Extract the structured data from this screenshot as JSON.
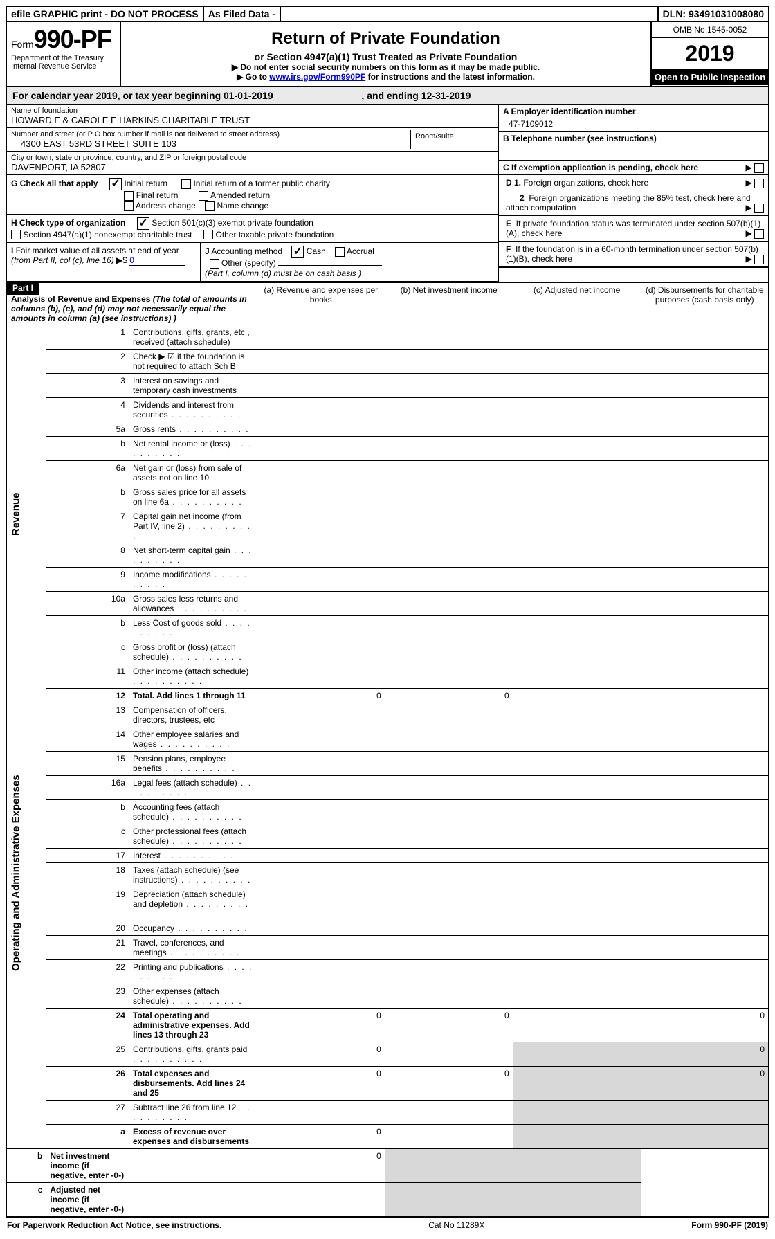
{
  "top": {
    "efile": "efile GRAPHIC print - DO NOT PROCESS",
    "asfiled": "As Filed Data -",
    "dln": "DLN: 93491031008080"
  },
  "header": {
    "form_prefix": "Form",
    "form_no": "990-PF",
    "dept": "Department of the Treasury",
    "irs": "Internal Revenue Service",
    "title": "Return of Private Foundation",
    "subtitle": "or Section 4947(a)(1) Trust Treated as Private Foundation",
    "line1": "▶ Do not enter social security numbers on this form as it may be made public.",
    "line2_pre": "▶ Go to ",
    "line2_link": "www.irs.gov/Form990PF",
    "line2_post": " for instructions and the latest information.",
    "omb": "OMB No 1545-0052",
    "year": "2019",
    "inspect": "Open to Public Inspection"
  },
  "cal": {
    "text1": "For calendar year 2019, or tax year beginning ",
    "begin": "01-01-2019",
    "text2": ", and ending ",
    "end": "12-31-2019"
  },
  "info": {
    "name_label": "Name of foundation",
    "name": "HOWARD E & CAROLE E HARKINS CHARITABLE TRUST",
    "addr_label": "Number and street (or P O  box number if mail is not delivered to street address)",
    "addr": "4300 EAST 53RD STREET SUITE 103",
    "room_label": "Room/suite",
    "city_label": "City or town, state or province, country, and ZIP or foreign postal code",
    "city": "DAVENPORT, IA  52807",
    "ein_label": "A Employer identification number",
    "ein": "47-7109012",
    "tel_label": "B Telephone number (see instructions)",
    "c_label": "C If exemption application is pending, check here"
  },
  "g": {
    "label": "G Check all that apply",
    "opts": [
      "Initial return",
      "Initial return of a former public charity",
      "Final return",
      "Amended return",
      "Address change",
      "Name change"
    ]
  },
  "h": {
    "label": "H Check type of organization",
    "opts": [
      "Section 501(c)(3) exempt private foundation",
      "Section 4947(a)(1) nonexempt charitable trust",
      "Other taxable private foundation"
    ]
  },
  "i": {
    "label": "I Fair market value of all assets at end of year (from Part II, col  (c), line 16) ▶$ ",
    "val": "0"
  },
  "j": {
    "label": "J Accounting method",
    "cash": "Cash",
    "accrual": "Accrual",
    "other": "Other (specify)",
    "note": "(Part I, column (d) must be on cash basis )"
  },
  "d": {
    "d1": "D 1. Foreign organizations, check here",
    "d2": "2  Foreign organizations meeting the 85% test, check here and attach computation",
    "e": "E  If private foundation status was terminated under section 507(b)(1)(A), check here",
    "f": "F  If the foundation is in a 60-month termination under section 507(b)(1)(B), check here"
  },
  "part1": {
    "label": "Part I",
    "title": "Analysis of Revenue and Expenses",
    "note": " (The total of amounts in columns (b), (c), and (d) may not necessarily equal the amounts in column (a) (see instructions) )",
    "col_a": "(a) Revenue and expenses per books",
    "col_b": "(b) Net investment income",
    "col_c": "(c) Adjusted net income",
    "col_d": "(d) Disbursements for charitable purposes (cash basis only)",
    "side_rev": "Revenue",
    "side_exp": "Operating and Administrative Expenses"
  },
  "rows": [
    {
      "n": "1",
      "t": "Contributions, gifts, grants, etc , received (attach schedule)"
    },
    {
      "n": "2",
      "t": "Check ▶ ☑ if the foundation is not required to attach Sch  B"
    },
    {
      "n": "3",
      "t": "Interest on savings and temporary cash investments"
    },
    {
      "n": "4",
      "t": "Dividends and interest from securities"
    },
    {
      "n": "5a",
      "t": "Gross rents"
    },
    {
      "n": "b",
      "t": "Net rental income or (loss)"
    },
    {
      "n": "6a",
      "t": "Net gain or (loss) from sale of assets not on line 10"
    },
    {
      "n": "b",
      "t": "Gross sales price for all assets on line 6a"
    },
    {
      "n": "7",
      "t": "Capital gain net income (from Part IV, line 2)"
    },
    {
      "n": "8",
      "t": "Net short-term capital gain"
    },
    {
      "n": "9",
      "t": "Income modifications"
    },
    {
      "n": "10a",
      "t": "Gross sales less returns and allowances"
    },
    {
      "n": "b",
      "t": "Less  Cost of goods sold"
    },
    {
      "n": "c",
      "t": "Gross profit or (loss) (attach schedule)"
    },
    {
      "n": "11",
      "t": "Other income (attach schedule)"
    },
    {
      "n": "12",
      "t": "Total. Add lines 1 through 11",
      "bold": true,
      "a": "0",
      "b": "0"
    },
    {
      "n": "13",
      "t": "Compensation of officers, directors, trustees, etc"
    },
    {
      "n": "14",
      "t": "Other employee salaries and wages"
    },
    {
      "n": "15",
      "t": "Pension plans, employee benefits"
    },
    {
      "n": "16a",
      "t": "Legal fees (attach schedule)"
    },
    {
      "n": "b",
      "t": "Accounting fees (attach schedule)"
    },
    {
      "n": "c",
      "t": "Other professional fees (attach schedule)"
    },
    {
      "n": "17",
      "t": "Interest"
    },
    {
      "n": "18",
      "t": "Taxes (attach schedule) (see instructions)"
    },
    {
      "n": "19",
      "t": "Depreciation (attach schedule) and depletion"
    },
    {
      "n": "20",
      "t": "Occupancy"
    },
    {
      "n": "21",
      "t": "Travel, conferences, and meetings"
    },
    {
      "n": "22",
      "t": "Printing and publications"
    },
    {
      "n": "23",
      "t": "Other expenses (attach schedule)"
    },
    {
      "n": "24",
      "t": "Total operating and administrative expenses. Add lines 13 through 23",
      "bold": true,
      "a": "0",
      "b": "0",
      "d": "0"
    },
    {
      "n": "25",
      "t": "Contributions, gifts, grants paid",
      "a": "0",
      "d": "0"
    },
    {
      "n": "26",
      "t": "Total expenses and disbursements. Add lines 24 and 25",
      "bold": true,
      "a": "0",
      "b": "0",
      "d": "0"
    },
    {
      "n": "27",
      "t": "Subtract line 26 from line 12"
    },
    {
      "n": "a",
      "t": "Excess of revenue over expenses and disbursements",
      "bold": true,
      "a": "0"
    },
    {
      "n": "b",
      "t": "Net investment income (if negative, enter -0-)",
      "bold": true,
      "b": "0"
    },
    {
      "n": "c",
      "t": "Adjusted net income (if negative, enter -0-)",
      "bold": true
    }
  ],
  "footer": {
    "left": "For Paperwork Reduction Act Notice, see instructions.",
    "mid": "Cat  No  11289X",
    "right": "Form 990-PF (2019)"
  }
}
